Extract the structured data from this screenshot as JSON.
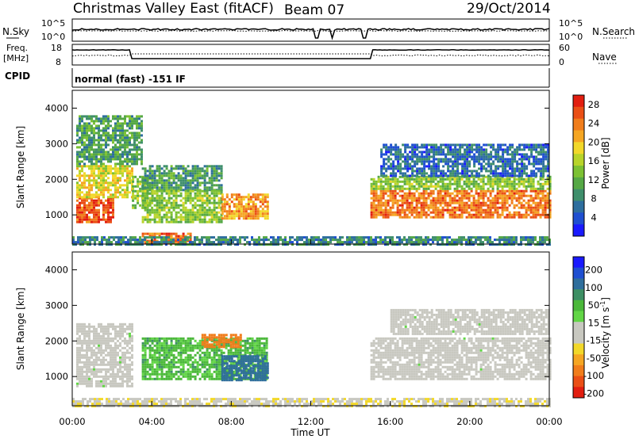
{
  "header": {
    "station": "Christmas Valley East (fitACF)",
    "beam": "Beam 07",
    "date": "29/Oct/2014"
  },
  "colors": {
    "power_scale": [
      "#1a1aff",
      "#1f4fd1",
      "#2e6e9e",
      "#3f8f6c",
      "#55a845",
      "#7cc133",
      "#b8d42a",
      "#f2d82a",
      "#f5a623",
      "#f07d1c",
      "#ea4f16",
      "#e21e10"
    ],
    "velocity_scale": [
      "#1a1aff",
      "#1f4fd1",
      "#2f6e9c",
      "#3d8f64",
      "#4bb83a",
      "#62d646",
      "#c8c8c0",
      "#c8c8c0",
      "#f2d82a",
      "#f5a623",
      "#f07d1c",
      "#ea4f16",
      "#e21e10"
    ],
    "ground_scatter": "#c8c8c0"
  },
  "panels": {
    "sky_noise": {
      "label": "N.Sky",
      "left_ticks": [
        "10^5",
        "10^0"
      ],
      "right_label": "N.Search",
      "right_ticks": [
        "10^5",
        "10^0"
      ]
    },
    "frequency": {
      "label_line1": "Freq.",
      "label_line2": "[MHz]",
      "left_ticks": [
        "18",
        "8"
      ],
      "right_label": "Nave",
      "right_ticks": [
        "60",
        "0"
      ]
    },
    "cpid": {
      "label": "CPID",
      "text": "normal (fast) -151 IF"
    }
  },
  "chart_data": [
    {
      "type": "heatmap",
      "title": "Power",
      "xlabel": "Time UT",
      "ylabel": "Slant Range [km]",
      "xlim": [
        "00:00",
        "24:00"
      ],
      "ylim": [
        180,
        4500
      ],
      "x_ticks": [
        "00:00",
        "04:00",
        "08:00",
        "12:00",
        "16:00",
        "20:00",
        "00:00"
      ],
      "y_ticks": [
        1000,
        2000,
        3000,
        4000
      ],
      "colorbar_label": "Power [dB]",
      "colorbar_ticks": [
        4,
        8,
        12,
        16,
        20,
        24,
        28
      ],
      "colorbar_range": [
        0,
        30
      ],
      "regions": [
        {
          "t0": 0.2,
          "t1": 2.0,
          "r0": 800,
          "r1": 1500,
          "value": 26
        },
        {
          "t0": 0.2,
          "t1": 3.0,
          "r0": 1500,
          "r1": 2400,
          "value": 18
        },
        {
          "t0": 0.2,
          "t1": 3.5,
          "r0": 2400,
          "r1": 3800,
          "value": 10
        },
        {
          "t0": 3.0,
          "t1": 4.0,
          "r0": 1200,
          "r1": 2100,
          "value": 14
        },
        {
          "t0": 3.5,
          "t1": 7.5,
          "r0": 1700,
          "r1": 2400,
          "value": 10
        },
        {
          "t0": 3.5,
          "t1": 7.5,
          "r0": 800,
          "r1": 1700,
          "value": 14
        },
        {
          "t0": 7.5,
          "t1": 9.8,
          "r0": 900,
          "r1": 1600,
          "value": 22
        },
        {
          "t0": 3.5,
          "t1": 6.0,
          "r0": 180,
          "r1": 500,
          "value": 25
        },
        {
          "t0": 15.0,
          "t1": 24.0,
          "r0": 900,
          "r1": 1700,
          "value": 24
        },
        {
          "t0": 15.0,
          "t1": 24.0,
          "r0": 1700,
          "r1": 2100,
          "value": 14
        },
        {
          "t0": 15.5,
          "t1": 24.0,
          "r0": 2100,
          "r1": 3000,
          "value": 6
        },
        {
          "t0": 0.0,
          "t1": 24.0,
          "r0": 180,
          "r1": 400,
          "value": 8
        }
      ]
    },
    {
      "type": "heatmap",
      "title": "Velocity",
      "xlabel": "Time UT",
      "ylabel": "Slant Range [km]",
      "xlim": [
        "00:00",
        "24:00"
      ],
      "ylim": [
        180,
        4500
      ],
      "x_ticks": [
        "00:00",
        "04:00",
        "08:00",
        "12:00",
        "16:00",
        "20:00",
        "00:00"
      ],
      "y_ticks": [
        1000,
        2000,
        3000,
        4000
      ],
      "colorbar_label": "Velocity [m s^-1]",
      "colorbar_ticks": [
        200,
        100,
        50,
        15,
        -15,
        -50,
        -100,
        -200
      ],
      "regions": [
        {
          "t0": 0.2,
          "t1": 3.0,
          "r0": 700,
          "r1": 2500,
          "value": 0,
          "ground_scatter": true
        },
        {
          "t0": 3.5,
          "t1": 9.8,
          "r0": 900,
          "r1": 2100,
          "value": 60
        },
        {
          "t0": 7.5,
          "t1": 9.8,
          "r0": 900,
          "r1": 1600,
          "value": 120
        },
        {
          "t0": 15.0,
          "t1": 24.0,
          "r0": 900,
          "r1": 2100,
          "value": 0,
          "ground_scatter": true
        },
        {
          "t0": 16.0,
          "t1": 24.0,
          "r0": 2200,
          "r1": 2900,
          "value": 0,
          "ground_scatter": true
        },
        {
          "t0": 6.5,
          "t1": 8.5,
          "r0": 1800,
          "r1": 2200,
          "value": -120
        },
        {
          "t0": 0.0,
          "t1": 24.0,
          "r0": 180,
          "r1": 400,
          "value": -40
        }
      ]
    }
  ]
}
